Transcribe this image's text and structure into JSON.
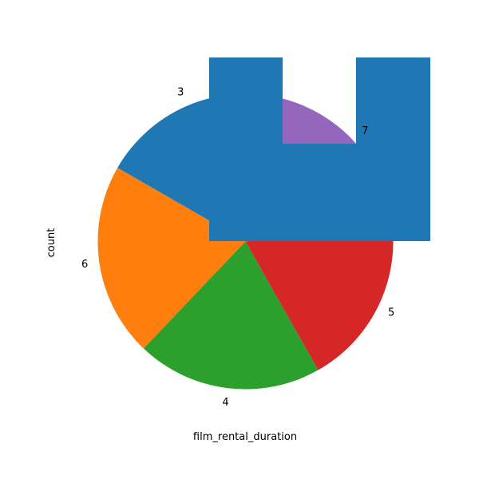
{
  "chart_data": {
    "type": "pie",
    "xlabel": "film_rental_duration",
    "ylabel": "count",
    "categories": [
      "3",
      "4",
      "5",
      "6",
      "7"
    ],
    "values": [
      203,
      203,
      191,
      212,
      191
    ],
    "slices": [
      {
        "label": "3",
        "value": 203,
        "color": "#1f77b4"
      },
      {
        "label": "6",
        "value": 212,
        "color": "#ff7f0e"
      },
      {
        "label": "4",
        "value": 203,
        "color": "#2ca02c"
      },
      {
        "label": "5",
        "value": 191,
        "color": "#d62728"
      },
      {
        "label": "7",
        "value": 191,
        "color": "#9467bd"
      }
    ],
    "overlay_color": "#1f77b4"
  }
}
